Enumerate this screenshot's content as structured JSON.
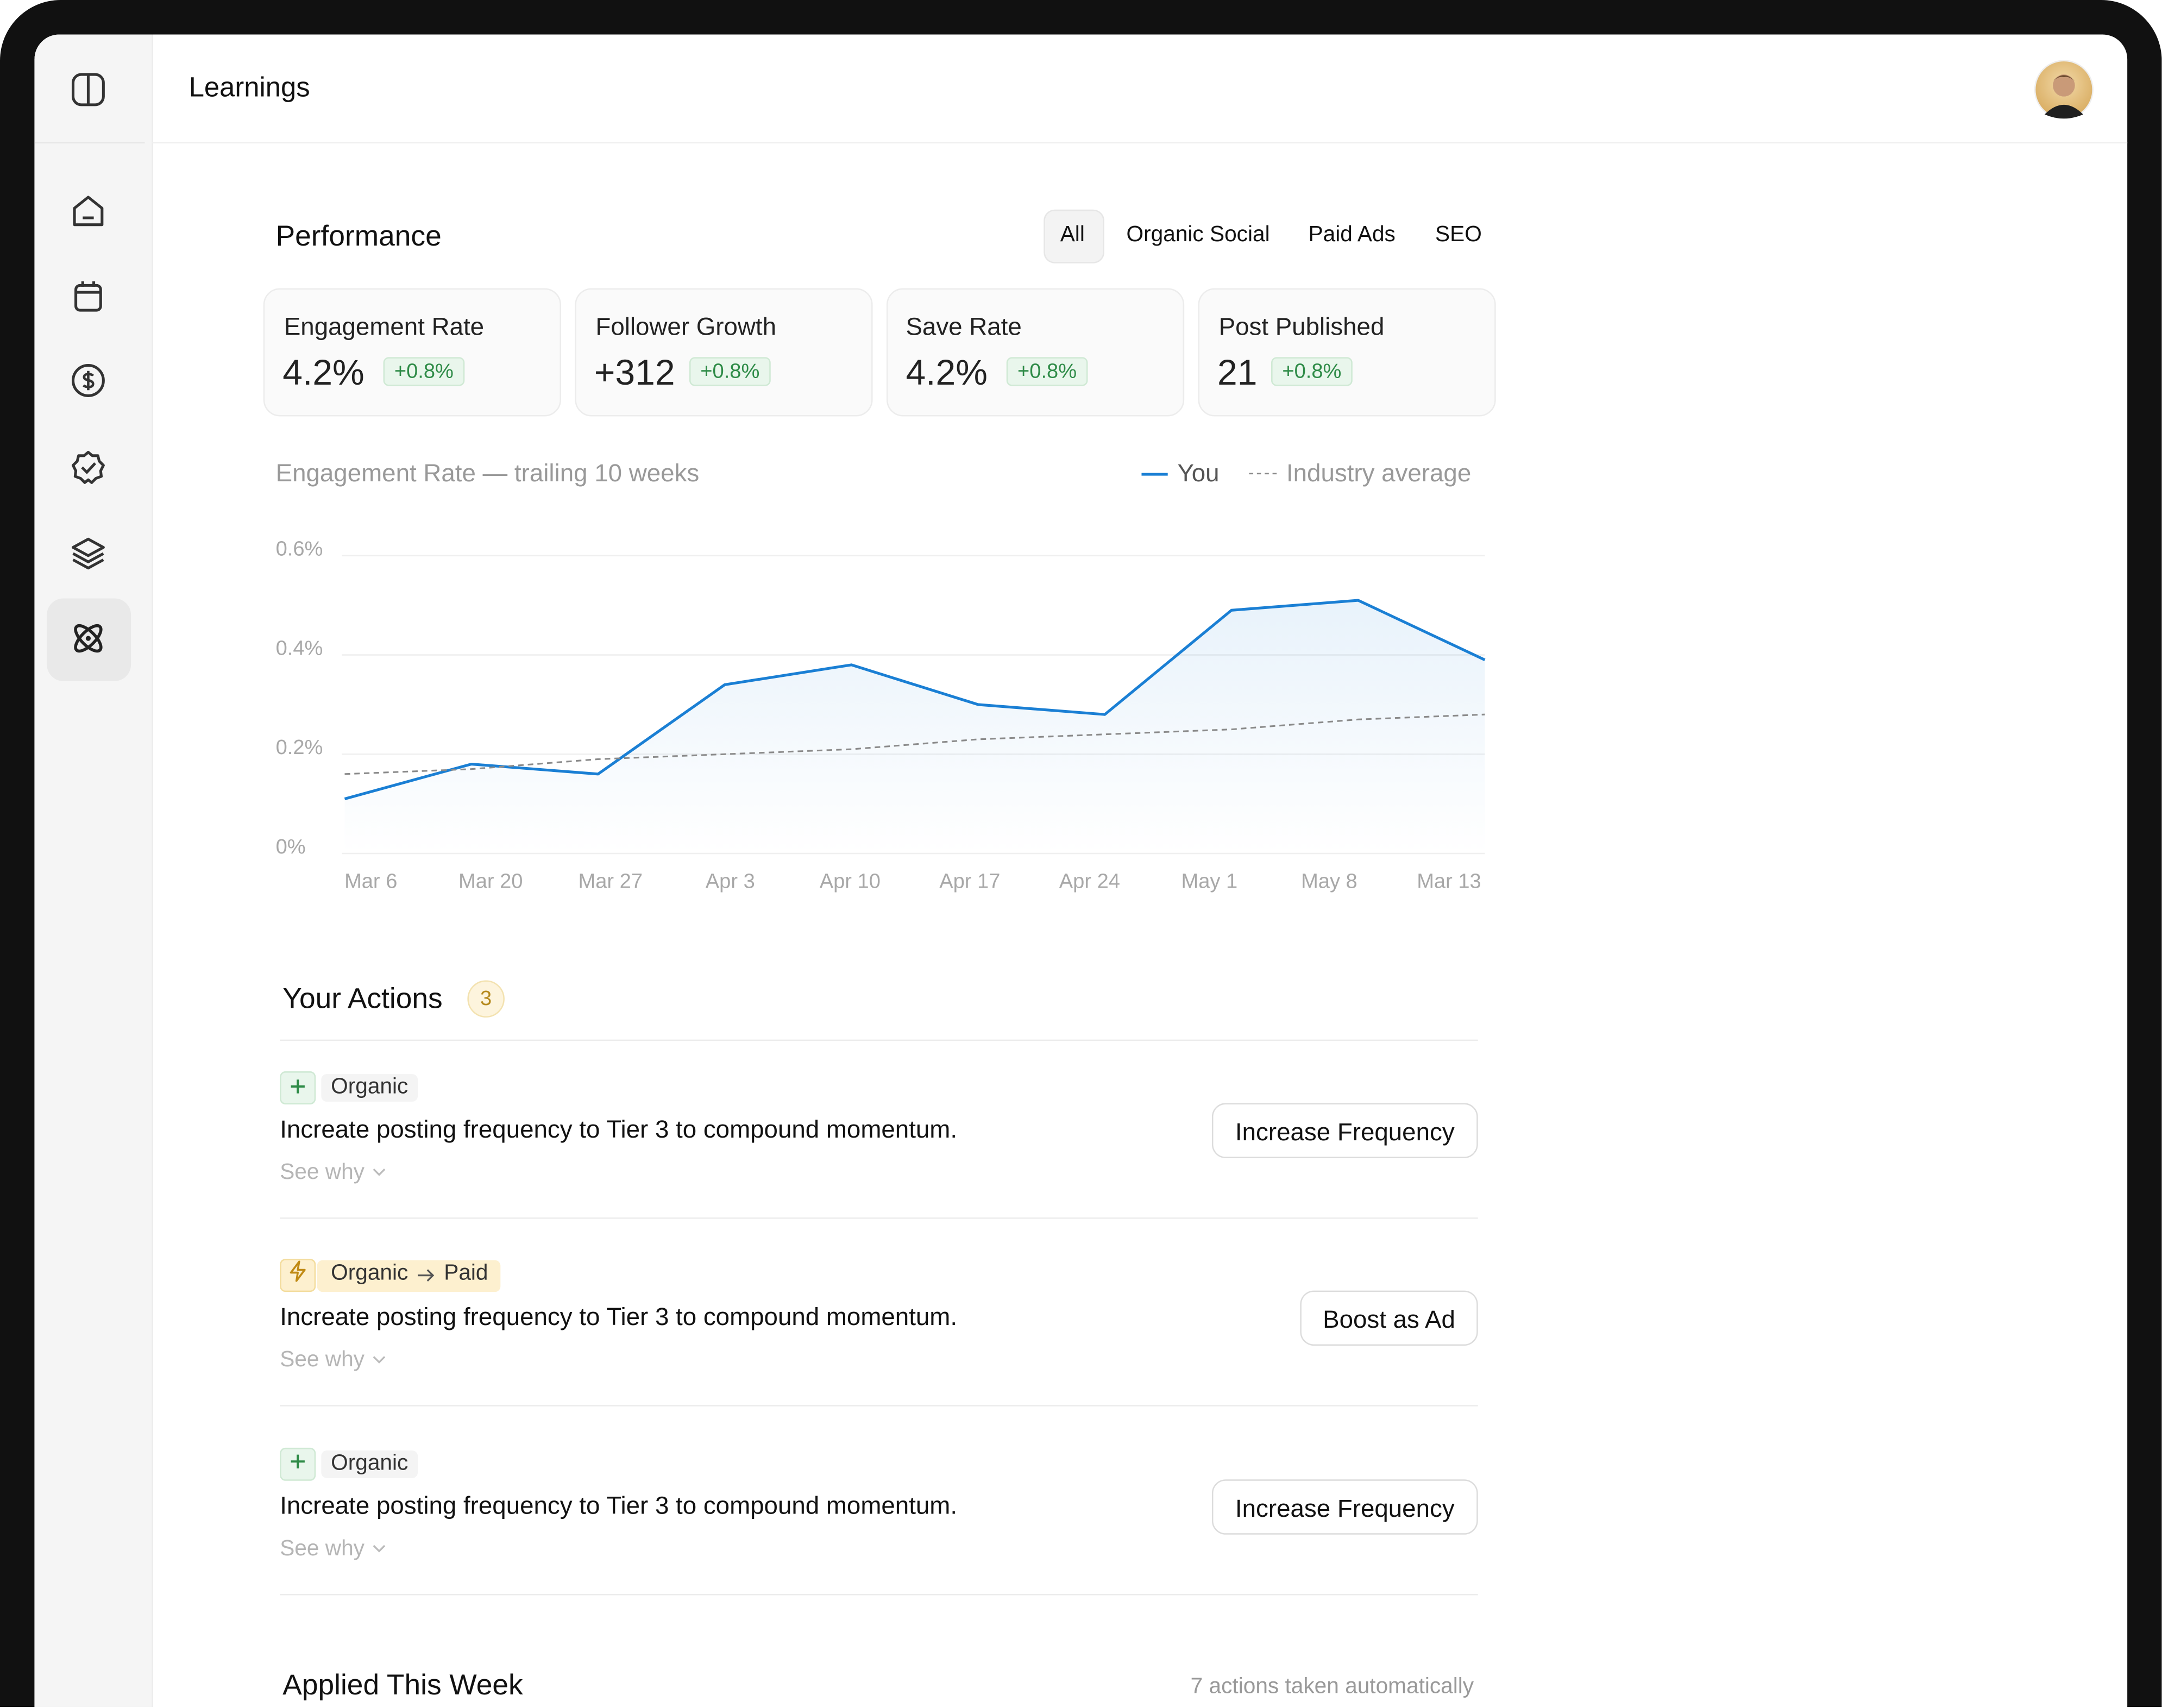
{
  "header": {
    "title": "Learnings"
  },
  "performance": {
    "title": "Performance",
    "tabs": [
      "All",
      "Organic Social",
      "Paid Ads",
      "SEO"
    ],
    "cards": [
      {
        "label": "Engagement Rate",
        "value": "4.2%",
        "change": "+0.8%"
      },
      {
        "label": "Follower Growth",
        "value": "+312",
        "change": "+0.8%"
      },
      {
        "label": "Save Rate",
        "value": "4.2%",
        "change": "+0.8%"
      },
      {
        "label": "Post Published",
        "value": "21",
        "change": "+0.8%"
      }
    ]
  },
  "chart_data": {
    "type": "line",
    "title": "Engagement Rate — trailing 10 weeks",
    "categories": [
      "Mar 6",
      "Mar 20",
      "Mar 27",
      "Apr 3",
      "Apr 10",
      "Apr 17",
      "Apr 24",
      "May 1",
      "May 8",
      "Mar 13"
    ],
    "series": [
      {
        "name": "You",
        "color": "#1a7fd4",
        "line_style": "solid",
        "area": true,
        "values": [
          0.11,
          0.18,
          0.16,
          0.34,
          0.38,
          0.3,
          0.28,
          0.49,
          0.51,
          0.39
        ]
      },
      {
        "name": "Industry average",
        "color": "#8a8a8a",
        "line_style": "dashed",
        "area": false,
        "values": [
          0.16,
          0.17,
          0.19,
          0.2,
          0.21,
          0.23,
          0.24,
          0.25,
          0.27,
          0.28
        ]
      }
    ],
    "ylim": [
      0,
      0.6
    ],
    "yticks": [
      {
        "value": 0,
        "label": "0%"
      },
      {
        "value": 0.2,
        "label": "0.2%"
      },
      {
        "value": 0.4,
        "label": "0.4%"
      },
      {
        "value": 0.6,
        "label": "0.6%"
      }
    ],
    "grid": true
  },
  "actions": {
    "title": "Your Actions",
    "count": "3",
    "see_why": "See why",
    "items": [
      {
        "tag": "Organic",
        "text": "Increate posting frequency to Tier 3 to compound momentum.",
        "button": "Increase Frequency"
      },
      {
        "tag": "Organic",
        "tag_to": "Paid",
        "text": "Increate posting frequency to Tier 3 to compound momentum.",
        "button": "Boost as Ad"
      },
      {
        "tag": "Organic",
        "text": "Increate posting frequency to Tier 3 to compound momentum.",
        "button": "Increase Frequency"
      }
    ]
  },
  "applied": {
    "title": "Applied This Week",
    "note": "7 actions taken automatically"
  }
}
